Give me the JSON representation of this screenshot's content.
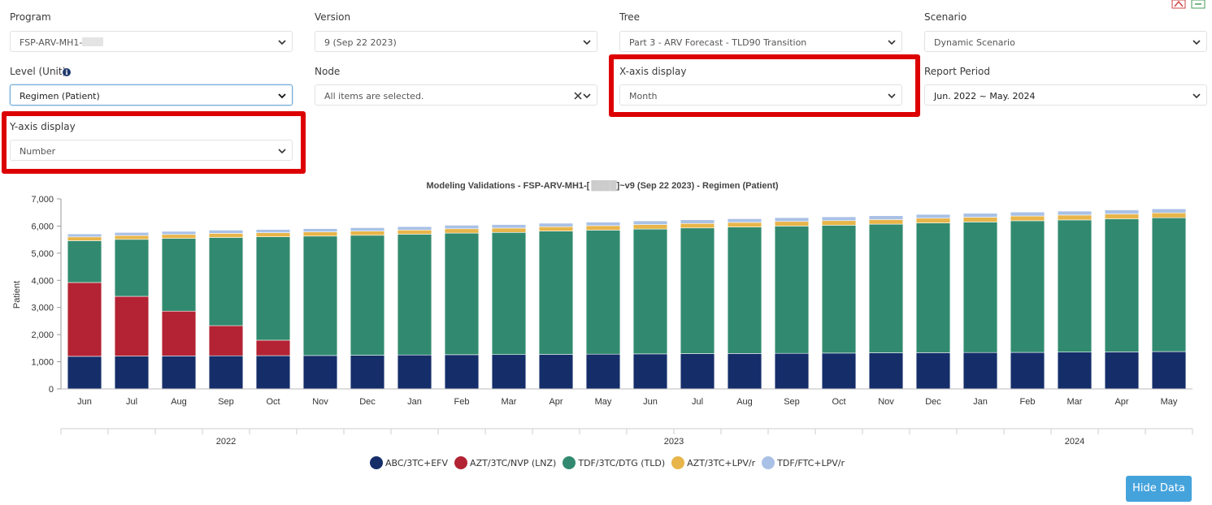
{
  "filters": {
    "program": {
      "label": "Program",
      "value": "FSP-ARV-MH1-"
    },
    "version": {
      "label": "Version",
      "value": "9 (Sep 22 2023)"
    },
    "tree": {
      "label": "Tree",
      "value": "Part 3 - ARV Forecast - TLD90 Transition"
    },
    "scenario": {
      "label": "Scenario",
      "value": "Dynamic Scenario"
    },
    "level": {
      "label": "Level (Unit)",
      "value": "Regimen (Patient)"
    },
    "node": {
      "label": "Node",
      "value": "All items are selected."
    },
    "x_axis": {
      "label": "X-axis display",
      "value": "Month"
    },
    "report_period": {
      "label": "Report Period",
      "value": "Jun. 2022 ~ May. 2024"
    },
    "y_axis": {
      "label": "Y-axis display",
      "value": "Number"
    }
  },
  "buttons": {
    "hide_data": "Hide Data"
  },
  "colors": {
    "ABC/3TC+EFV": "#152e6a",
    "AZT/3TC/NVP (LNZ)": "#b32333",
    "TDF/3TC/DTG (TLD)": "#318a6f",
    "AZT/3TC+LPV/r": "#e8b54a",
    "TDF/FTC+LPV/r": "#a9c1e6",
    "highlight": "#dd0000",
    "button": "#45a3dc"
  },
  "chart_data": {
    "type": "bar",
    "stacked": true,
    "title": "Modeling Validations - FSP-ARV-MH1-[",
    "title_suffix": "]~v9 (Sep 22 2023) - Regimen (Patient)",
    "ylabel": "Patient",
    "xlabel": "",
    "ylim": [
      0,
      7000
    ],
    "yticks": [
      "0",
      "1,000",
      "2,000",
      "3,000",
      "4,000",
      "5,000",
      "6,000",
      "7,000"
    ],
    "categories": [
      "Jun",
      "Jul",
      "Aug",
      "Sep",
      "Oct",
      "Nov",
      "Dec",
      "Jan",
      "Feb",
      "Mar",
      "Apr",
      "May",
      "Jun",
      "Jul",
      "Aug",
      "Sep",
      "Oct",
      "Nov",
      "Dec",
      "Jan",
      "Feb",
      "Mar",
      "Apr",
      "May"
    ],
    "years": [
      {
        "label": "2022",
        "start": 0,
        "end": 7
      },
      {
        "label": "2023",
        "start": 7,
        "end": 19
      },
      {
        "label": "2024",
        "start": 19,
        "end": 24
      }
    ],
    "legend_position": "bottom",
    "grid": false,
    "series": [
      {
        "name": "ABC/3TC+EFV",
        "values": [
          1200,
          1210,
          1215,
          1220,
          1225,
          1230,
          1240,
          1250,
          1260,
          1265,
          1275,
          1280,
          1290,
          1300,
          1305,
          1310,
          1320,
          1330,
          1335,
          1340,
          1345,
          1355,
          1365,
          1375
        ]
      },
      {
        "name": "AZT/3TC/NVP (LNZ)",
        "values": [
          2720,
          2200,
          1650,
          1110,
          570,
          0,
          0,
          0,
          0,
          0,
          0,
          0,
          0,
          0,
          0,
          0,
          0,
          0,
          0,
          0,
          0,
          0,
          0,
          0
        ]
      },
      {
        "name": "TDF/3TC/DTG (TLD)",
        "values": [
          1540,
          2100,
          2680,
          3250,
          3810,
          4400,
          4420,
          4450,
          4480,
          4500,
          4540,
          4570,
          4600,
          4630,
          4660,
          4690,
          4710,
          4740,
          4780,
          4810,
          4850,
          4870,
          4900,
          4930
        ]
      },
      {
        "name": "AZT/3TC+LPV/r",
        "values": [
          140,
          140,
          145,
          150,
          150,
          155,
          155,
          155,
          160,
          160,
          160,
          165,
          165,
          165,
          170,
          170,
          170,
          170,
          175,
          175,
          175,
          180,
          180,
          180
        ]
      },
      {
        "name": "TDF/FTC+LPV/r",
        "values": [
          110,
          115,
          115,
          120,
          120,
          120,
          125,
          125,
          130,
          130,
          130,
          130,
          135,
          135,
          135,
          140,
          140,
          140,
          140,
          145,
          145,
          145,
          150,
          150
        ]
      }
    ]
  }
}
